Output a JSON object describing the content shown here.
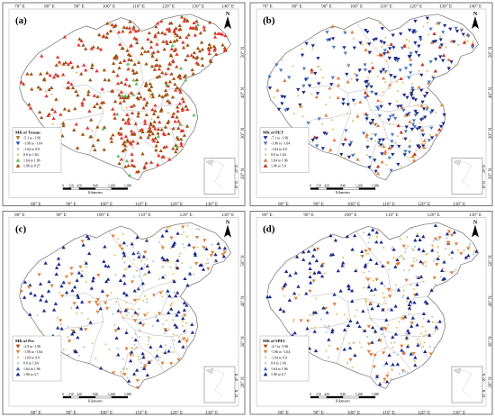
{
  "panels": [
    {
      "id": "a",
      "label": "(a)",
      "legend_title": "MK of Tmean",
      "legend_items": [
        {
          "text": "-5.1 to -1.96",
          "color": "#b07020",
          "shape": "down"
        },
        {
          "text": "-1.96 to -1.64",
          "color": "#3050c0",
          "shape": "down"
        },
        {
          "text": "-1.64 to 0.0",
          "color": "#e89090",
          "shape": "dot"
        },
        {
          "text": "0.0 to 1.64",
          "color": "#e0c050",
          "shape": "dot"
        },
        {
          "text": "1.64 to 1.96",
          "color": "#60c060",
          "shape": "up"
        },
        {
          "text": "1.96 to 8.27",
          "color": "#a05010",
          "shape": "up"
        }
      ],
      "dominant_color": "#a05010",
      "secondary_color": "#e83030"
    },
    {
      "id": "b",
      "label": "(b)",
      "legend_title": "MK of PET",
      "legend_items": [
        {
          "text": "-7.1 to -1.96",
          "color": "#1a2a8a",
          "shape": "down"
        },
        {
          "text": "-1.96 to -1.64",
          "color": "#4a7ac0",
          "shape": "down"
        },
        {
          "text": "-1.64 to 0.0",
          "color": "#a8c8e8",
          "shape": "dot"
        },
        {
          "text": "0.0 to 1.64",
          "color": "#e8c070",
          "shape": "dot"
        },
        {
          "text": "1.64 to 1.96",
          "color": "#e08040",
          "shape": "up"
        },
        {
          "text": "1.96 to 5.4",
          "color": "#c03020",
          "shape": "up"
        }
      ],
      "dominant_color": "#1a2a8a",
      "secondary_color": "#e8c070"
    },
    {
      "id": "c",
      "label": "(c)",
      "legend_title": "MK of Pre",
      "legend_items": [
        {
          "text": "-2.9 to -1.96",
          "color": "#b04020",
          "shape": "down"
        },
        {
          "text": "-1.96 to -1.64",
          "color": "#e08040",
          "shape": "down"
        },
        {
          "text": "-1.64 to 0.0",
          "color": "#e8c070",
          "shape": "dot"
        },
        {
          "text": "0.0 to 1.64",
          "color": "#a8c8e8",
          "shape": "dot"
        },
        {
          "text": "1.64 to 1.96",
          "color": "#4a7ac0",
          "shape": "up"
        },
        {
          "text": "1.96 to 4.7",
          "color": "#1a2a8a",
          "shape": "up"
        }
      ],
      "dominant_color": "#1a2a8a",
      "secondary_color": "#e8c070"
    },
    {
      "id": "d",
      "label": "(d)",
      "legend_title": "MK of SPEI",
      "legend_items": [
        {
          "text": "-4.7 to -1.96",
          "color": "#b04020",
          "shape": "down"
        },
        {
          "text": "-1.96 to -1.64",
          "color": "#e08040",
          "shape": "down"
        },
        {
          "text": "-1.64 to 0.0",
          "color": "#e8c070",
          "shape": "dot"
        },
        {
          "text": "0.0 to 1.64",
          "color": "#a8c8e8",
          "shape": "dot"
        },
        {
          "text": "1.64 to 1.96",
          "color": "#4a7ac0",
          "shape": "up"
        },
        {
          "text": "1.96 to 6.7",
          "color": "#1a2a8a",
          "shape": "up"
        }
      ],
      "dominant_color": "#1a2a8a",
      "secondary_color": "#e8c070"
    }
  ],
  "lon_labels": [
    "70° E",
    "80° E",
    "90° E",
    "100° E",
    "110° E",
    "120° E",
    "130° E",
    "140° E"
  ],
  "lon_labels_bottom": [
    "80° E",
    "90° E",
    "100° E",
    "110° E",
    "120° E",
    "130° E"
  ],
  "lat_labels": [
    "50° N",
    "40° N",
    "30° N",
    "20° N"
  ],
  "north_label": "N",
  "scalebar": {
    "ticks": [
      "0",
      "210",
      "420",
      "840",
      "1,260",
      "1,680"
    ],
    "unit": "Kilometers"
  },
  "inset_lat": [
    "20° N",
    "10° N"
  ],
  "inset_lon": [
    "110° E",
    "120° E"
  ],
  "colors": {
    "border": "#555555",
    "background": "#ffffff",
    "inner_border": "#aaaaaa"
  }
}
